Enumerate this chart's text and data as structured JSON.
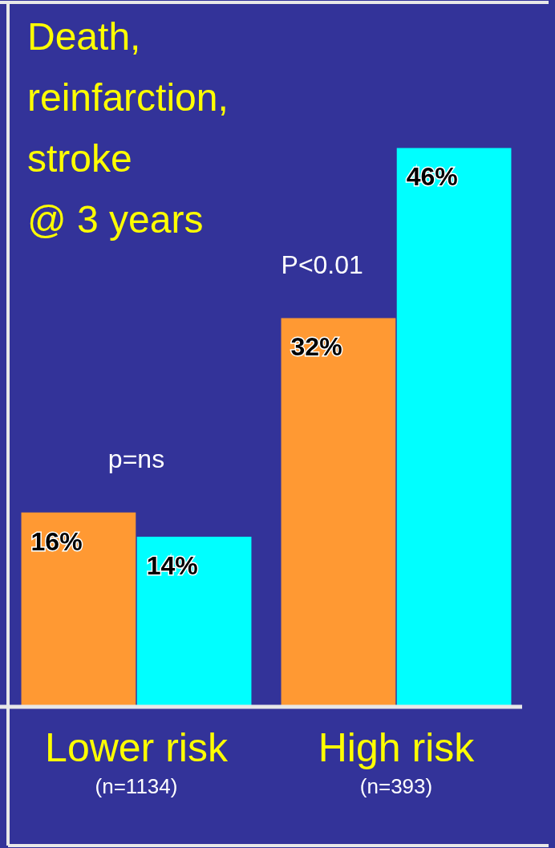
{
  "chart_data": {
    "type": "bar",
    "title": "Death,\nreinfarction,\nstroke\n@ 3 years",
    "categories": [
      "Lower risk\n(n=1134)",
      "High risk\n(n=393)"
    ],
    "series": [
      {
        "color": "#ff9933",
        "values": [
          16,
          32
        ],
        "value_labels": [
          "16%",
          "32%"
        ]
      },
      {
        "color": "#00ffff",
        "values": [
          14,
          46
        ],
        "value_labels": [
          "14%",
          "46%"
        ]
      }
    ],
    "annotations": [
      "p=ns",
      "P<0.01"
    ],
    "grid": false,
    "legend": false,
    "tick_labels": "x"
  }
}
